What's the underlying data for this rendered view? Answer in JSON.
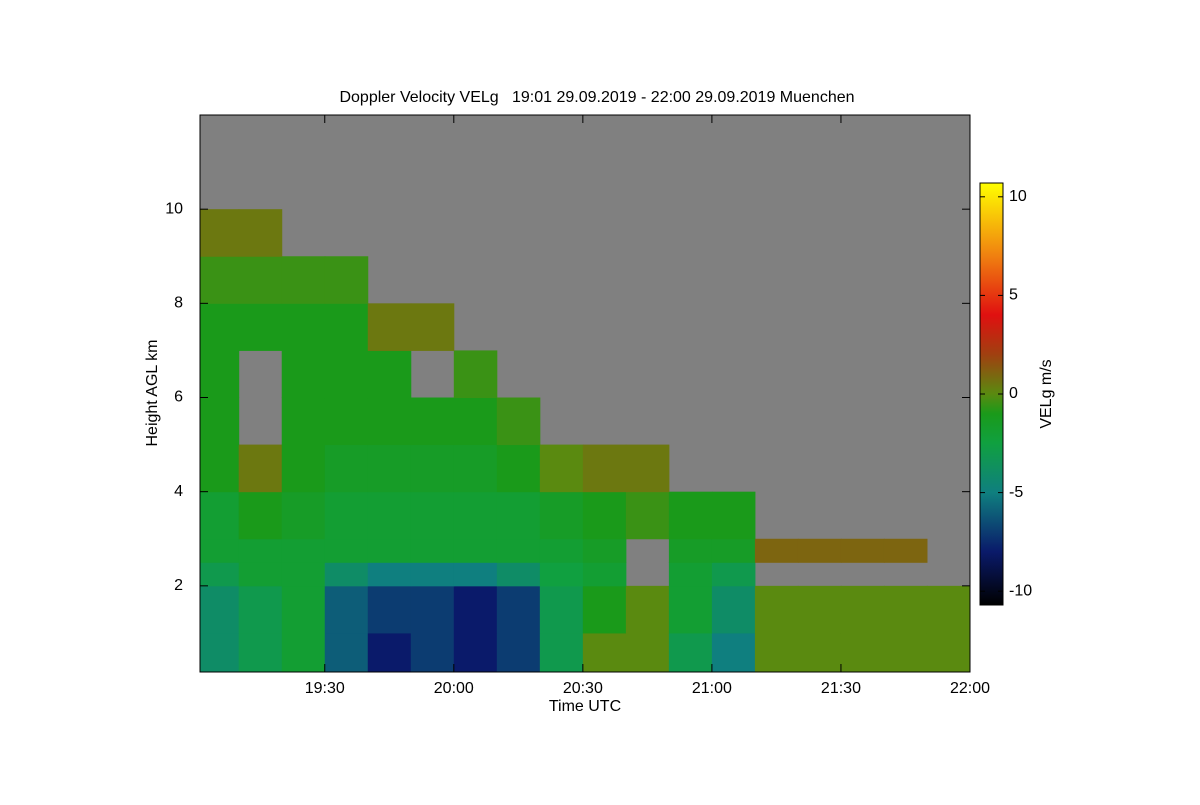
{
  "chart_data": {
    "type": "heatmap",
    "title": "Doppler Velocity VELg   19:01 29.09.2019 - 22:00 29.09.2019 Muenchen",
    "x_label": "Time UTC",
    "y_label": "Height AGL km",
    "colorbar_label": "VELg m/s",
    "xlim": [
      1141,
      1320
    ],
    "xticks": [
      {
        "value": 1170,
        "label": "19:30"
      },
      {
        "value": 1200,
        "label": "20:00"
      },
      {
        "value": 1230,
        "label": "20:30"
      },
      {
        "value": 1260,
        "label": "21:00"
      },
      {
        "value": 1290,
        "label": "21:30"
      },
      {
        "value": 1320,
        "label": "22:00"
      }
    ],
    "ylim": [
      0.17,
      12.0
    ],
    "yticks": [
      2,
      4,
      6,
      8,
      10
    ],
    "zlim": [
      -10.7,
      10.7
    ],
    "zticks": [
      -10,
      -5,
      0,
      5,
      10
    ],
    "x_bins": [
      1141,
      1150,
      1160,
      1170,
      1180,
      1190,
      1200,
      1210,
      1220,
      1230,
      1240,
      1250,
      1260,
      1270,
      1280,
      1290,
      1300,
      1310,
      1320
    ],
    "y_bins": [
      0.17,
      1,
      2,
      2.5,
      3,
      4,
      5,
      6,
      7,
      8,
      9,
      10,
      12.0
    ],
    "missing_color": "#808080",
    "colorscale": [
      {
        "value": -10.7,
        "color": "#000000"
      },
      {
        "value": -8,
        "color": "#0a1a6a"
      },
      {
        "value": -5,
        "color": "#0f7f7f"
      },
      {
        "value": -2.5,
        "color": "#10a040"
      },
      {
        "value": -1,
        "color": "#1a9a1a"
      },
      {
        "value": 0,
        "color": "#5a8a10"
      },
      {
        "value": 2,
        "color": "#a04010"
      },
      {
        "value": 4,
        "color": "#e01010"
      },
      {
        "value": 7,
        "color": "#f08010"
      },
      {
        "value": 10.7,
        "color": "#ffff00"
      }
    ],
    "values": [
      [
        -4,
        -3,
        -2,
        -6,
        -8,
        -7,
        -8,
        -7,
        -3,
        0,
        0,
        -3,
        -5,
        0,
        0,
        0,
        0,
        0
      ],
      [
        -4,
        -3,
        -2,
        -6,
        -7,
        -7,
        -8,
        -7,
        -3,
        -1,
        0,
        -2,
        -4,
        0,
        0,
        0,
        0,
        0
      ],
      [
        -3,
        -2,
        -2,
        -4,
        -5,
        -5,
        -5,
        -4,
        -2.5,
        -2,
        null,
        -2,
        -3,
        null,
        null,
        null,
        null,
        null
      ],
      [
        -2,
        -2,
        -2,
        -2,
        -2,
        -2,
        -2,
        -2,
        -2,
        -1.5,
        null,
        -1.5,
        -1.5,
        1,
        1,
        1,
        1,
        null
      ],
      [
        -2,
        -1,
        -1.5,
        -2,
        -2,
        -2,
        -2,
        -2,
        -1.5,
        -1,
        -0.5,
        -1,
        -1,
        null,
        null,
        null,
        null,
        null
      ],
      [
        -1,
        0.5,
        -1,
        -1.5,
        -1.5,
        -1.5,
        -1.5,
        -1,
        0,
        0.5,
        0.5,
        null,
        null,
        null,
        null,
        null,
        null,
        null
      ],
      [
        -1,
        null,
        -1,
        -1,
        -1,
        -1,
        -1,
        -0.5,
        null,
        null,
        null,
        null,
        null,
        null,
        null,
        null,
        null,
        null
      ],
      [
        -1,
        null,
        -1,
        -1,
        -1,
        null,
        -0.5,
        null,
        null,
        null,
        null,
        null,
        null,
        null,
        null,
        null,
        null,
        null
      ],
      [
        -1,
        -1,
        -1,
        -1,
        0.5,
        0.5,
        null,
        null,
        null,
        null,
        null,
        null,
        null,
        null,
        null,
        null,
        null,
        null
      ],
      [
        -0.5,
        -0.5,
        -0.5,
        -0.5,
        null,
        null,
        null,
        null,
        null,
        null,
        null,
        null,
        null,
        null,
        null,
        null,
        null,
        null
      ],
      [
        0.5,
        0.5,
        null,
        null,
        null,
        null,
        null,
        null,
        null,
        null,
        null,
        null,
        null,
        null,
        null,
        null,
        null,
        null
      ],
      [
        null,
        null,
        null,
        null,
        null,
        null,
        null,
        null,
        null,
        null,
        null,
        null,
        null,
        null,
        null,
        null,
        null,
        null
      ]
    ]
  }
}
